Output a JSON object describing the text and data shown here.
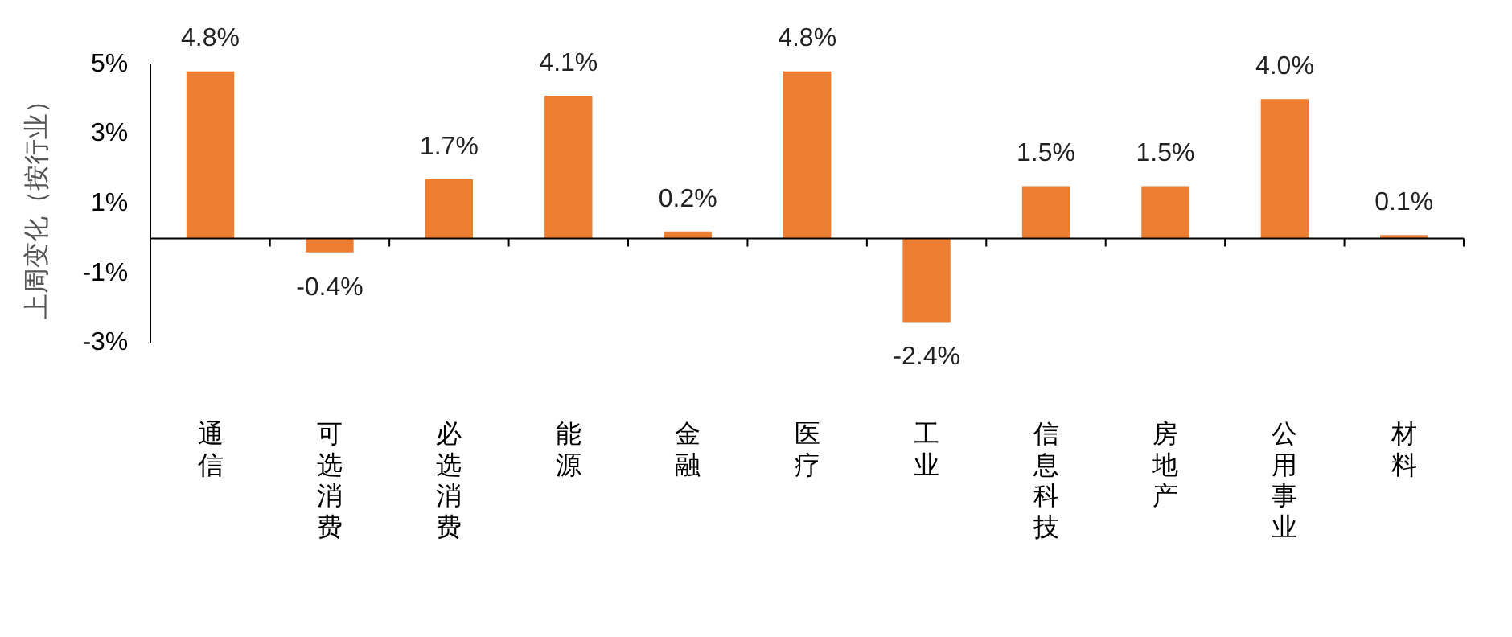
{
  "chart_data": {
    "type": "bar",
    "ylabel": "上周变化（按行业）",
    "categories": [
      "通信",
      "可选消费",
      "必选消费",
      "能源",
      "金融",
      "医疗",
      "工业",
      "信息科技",
      "房地产",
      "公用事业",
      "材料"
    ],
    "values": [
      4.8,
      -0.4,
      1.7,
      4.1,
      0.2,
      4.8,
      -2.4,
      1.5,
      1.5,
      4.0,
      0.1
    ],
    "value_labels": [
      "4.8%",
      "-0.4%",
      "1.7%",
      "4.1%",
      "0.2%",
      "4.8%",
      "-2.4%",
      "1.5%",
      "1.5%",
      "4.0%",
      "0.1%"
    ],
    "color": "#ed7d31",
    "ylim": [
      -3,
      5
    ],
    "yticks": [
      {
        "value": -3,
        "label": "-3%"
      },
      {
        "value": -1,
        "label": "-1%"
      },
      {
        "value": 1,
        "label": "1%"
      },
      {
        "value": 3,
        "label": "3%"
      },
      {
        "value": 5,
        "label": "5%"
      }
    ],
    "grid": false,
    "legend": false
  }
}
